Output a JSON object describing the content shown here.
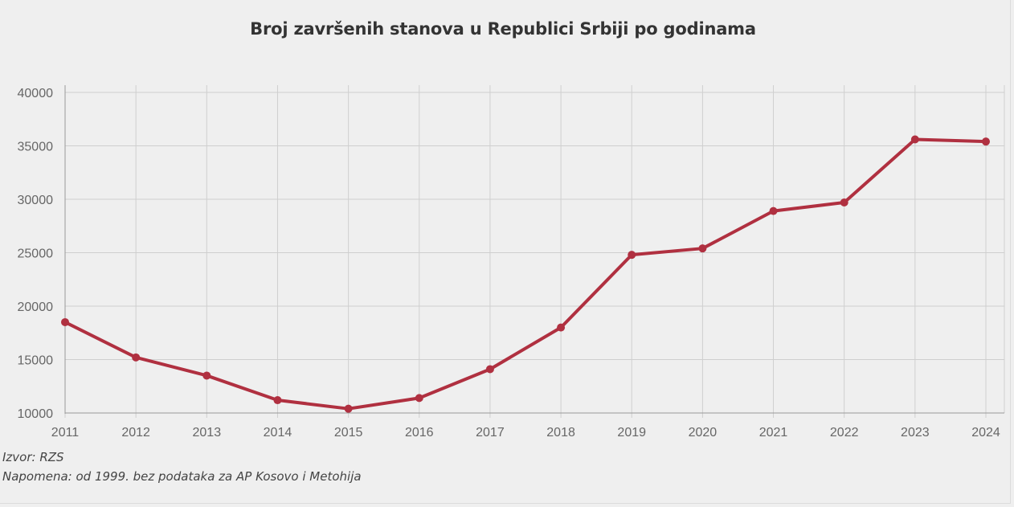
{
  "chart_data": {
    "type": "line",
    "title": "Broj završenih stanova u Republici Srbiji po godinama",
    "categories": [
      "2011",
      "2012",
      "2013",
      "2014",
      "2015",
      "2016",
      "2017",
      "2018",
      "2019",
      "2020",
      "2021",
      "2022",
      "2023",
      "2024"
    ],
    "series": [
      {
        "values": [
          18500,
          15200,
          13500,
          11200,
          10400,
          11400,
          14100,
          18000,
          24800,
          25400,
          28900,
          29700,
          35600,
          35400
        ],
        "color": "#b03040"
      }
    ],
    "ylim": [
      10000,
      40000
    ],
    "yticks": [
      "10000",
      "15000",
      "20000",
      "25000",
      "30000",
      "35000",
      "40000"
    ],
    "xlabel": "",
    "ylabel": "",
    "grid": true,
    "legend": "none"
  },
  "notes": {
    "source": "Izvor: RZS",
    "remark": "Napomena: od 1999. bez podataka za AP Kosovo i Metohija"
  },
  "colors": {
    "background": "#efefef",
    "line": "#b03040",
    "grid": "#cfcfcf",
    "axis": "#999999"
  }
}
